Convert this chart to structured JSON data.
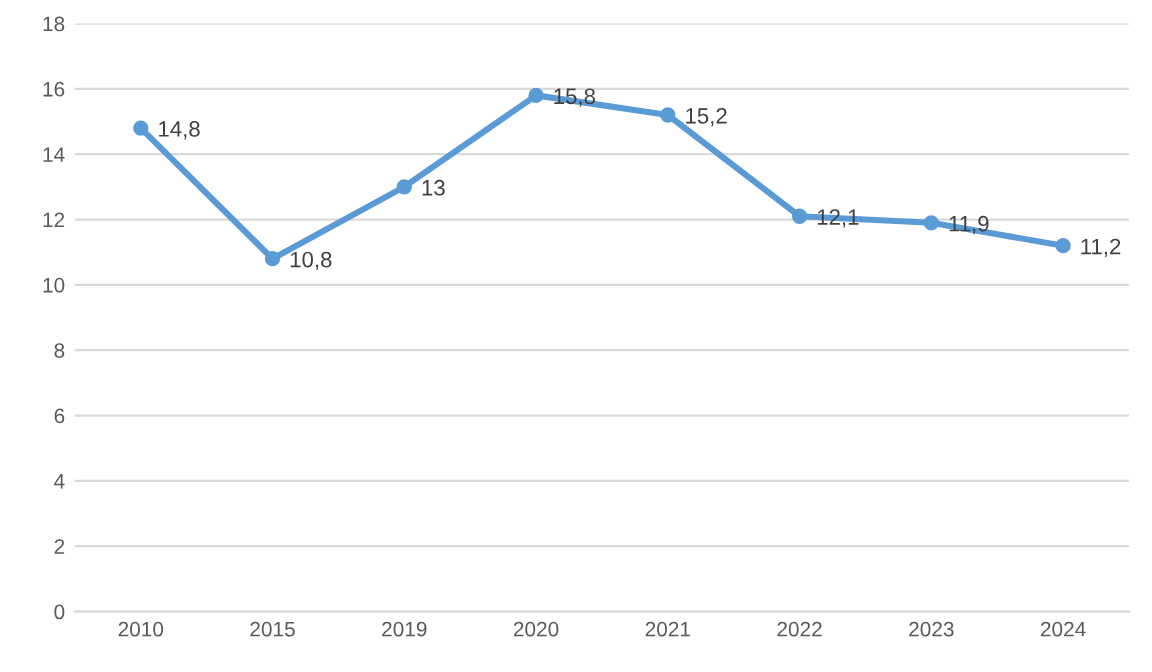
{
  "chart_data": {
    "type": "line",
    "categories": [
      "2010",
      "2015",
      "2019",
      "2020",
      "2021",
      "2022",
      "2023",
      "2024"
    ],
    "series": [
      {
        "color": "#5b9bd5",
        "values": [
          14.8,
          10.8,
          13,
          15.8,
          15.2,
          12.1,
          11.9,
          11.2
        ],
        "value_labels": [
          "14,8",
          "10,8",
          "13",
          "15,8",
          "15,2",
          "12,1",
          "11,9",
          "11,2"
        ]
      }
    ],
    "ylim": [
      0,
      18
    ],
    "yticks": [
      0,
      2,
      4,
      6,
      8,
      10,
      12,
      14,
      16,
      18
    ],
    "grid": "y",
    "marker": "circle",
    "line_style": "solid"
  }
}
